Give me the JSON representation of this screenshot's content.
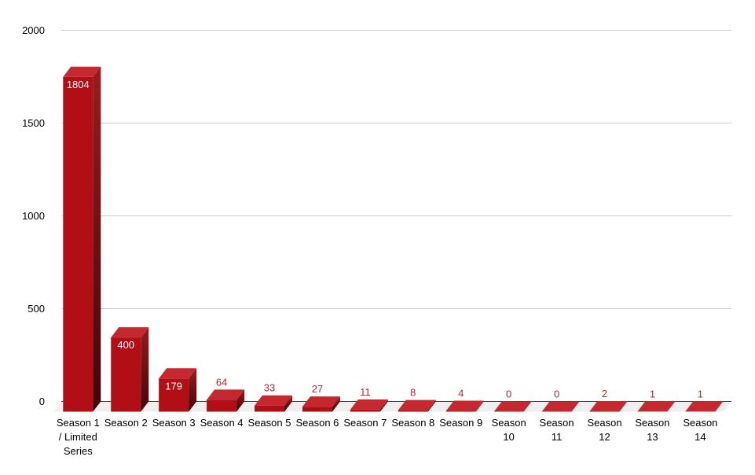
{
  "chart_data": {
    "type": "bar",
    "style": "3d-column",
    "categories": [
      "Season 1\n/ Limited\nSeries",
      "Season 2",
      "Season 3",
      "Season 4",
      "Season 5",
      "Season 6",
      "Season 7",
      "Season 8",
      "Season 9",
      "Season\n10",
      "Season\n11",
      "Season\n12",
      "Season\n13",
      "Season\n14"
    ],
    "values": [
      1804,
      400,
      179,
      64,
      33,
      27,
      11,
      8,
      4,
      0,
      0,
      2,
      1,
      1
    ],
    "yticks": [
      0,
      500,
      1000,
      1500,
      2000
    ],
    "ytick_labels": [
      "0",
      "500",
      "1000",
      "1500",
      "2000"
    ],
    "ylim": [
      0,
      2000
    ],
    "grid": true,
    "legend": "none",
    "xlabel": "",
    "ylabel": "",
    "colors": {
      "bar_front": "#B10E15",
      "bar_top": "#C5292F",
      "bar_side_top": "#9A1B1F",
      "bar_side_bottom": "#420508",
      "value_label_inside": "#FFFFFF",
      "value_label_outside": "#C0272C",
      "gridline": "#CCCCCC",
      "zero_line": "#424242",
      "floor": "#EFEFEF",
      "axis_text": "#000000"
    }
  }
}
